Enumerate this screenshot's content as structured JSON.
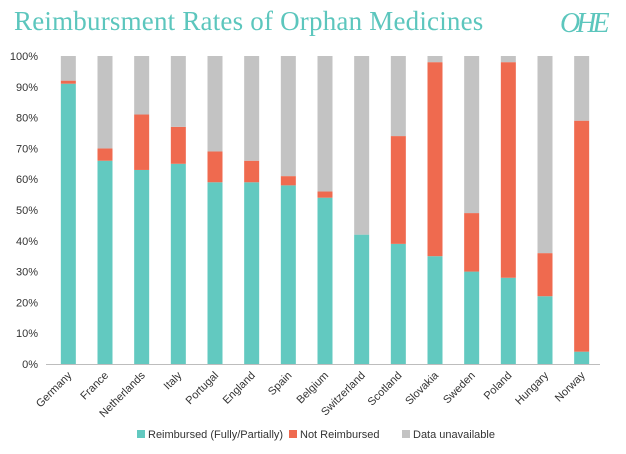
{
  "title": "Reimbursment Rates of Orphan Medicines",
  "logo_text": "OHE",
  "colors": {
    "reimbursed": "#62c9c0",
    "not_reimbursed": "#ef6a4f",
    "unavailable": "#c3c3c3",
    "title": "#5cc6bd"
  },
  "chart_data": {
    "type": "bar",
    "stacked": true,
    "title": "Reimbursment Rates of Orphan Medicines",
    "categories": [
      "Germany",
      "France",
      "Netherlands",
      "Italy",
      "Portugal",
      "England",
      "Spain",
      "Belgium",
      "Switzerland",
      "Scotland",
      "Slovakia",
      "Sweden",
      "Poland",
      "Hungary",
      "Norway"
    ],
    "series": [
      {
        "name": "Reimbursed (Fully/Partially)",
        "values": [
          91,
          66,
          63,
          65,
          59,
          59,
          58,
          54,
          42,
          39,
          35,
          30,
          28,
          22,
          4
        ]
      },
      {
        "name": "Not Reimbursed",
        "values": [
          1,
          4,
          18,
          12,
          10,
          7,
          3,
          2,
          0,
          35,
          63,
          19,
          70,
          14,
          75
        ]
      },
      {
        "name": "Data unavailable",
        "values": [
          8,
          30,
          19,
          23,
          31,
          34,
          39,
          44,
          58,
          26,
          2,
          51,
          2,
          64,
          21
        ]
      }
    ],
    "yticks": [
      "0%",
      "10%",
      "20%",
      "30%",
      "40%",
      "50%",
      "60%",
      "70%",
      "80%",
      "90%",
      "100%"
    ],
    "ylim": [
      0,
      100
    ],
    "grid": false,
    "legend_position": "bottom"
  }
}
